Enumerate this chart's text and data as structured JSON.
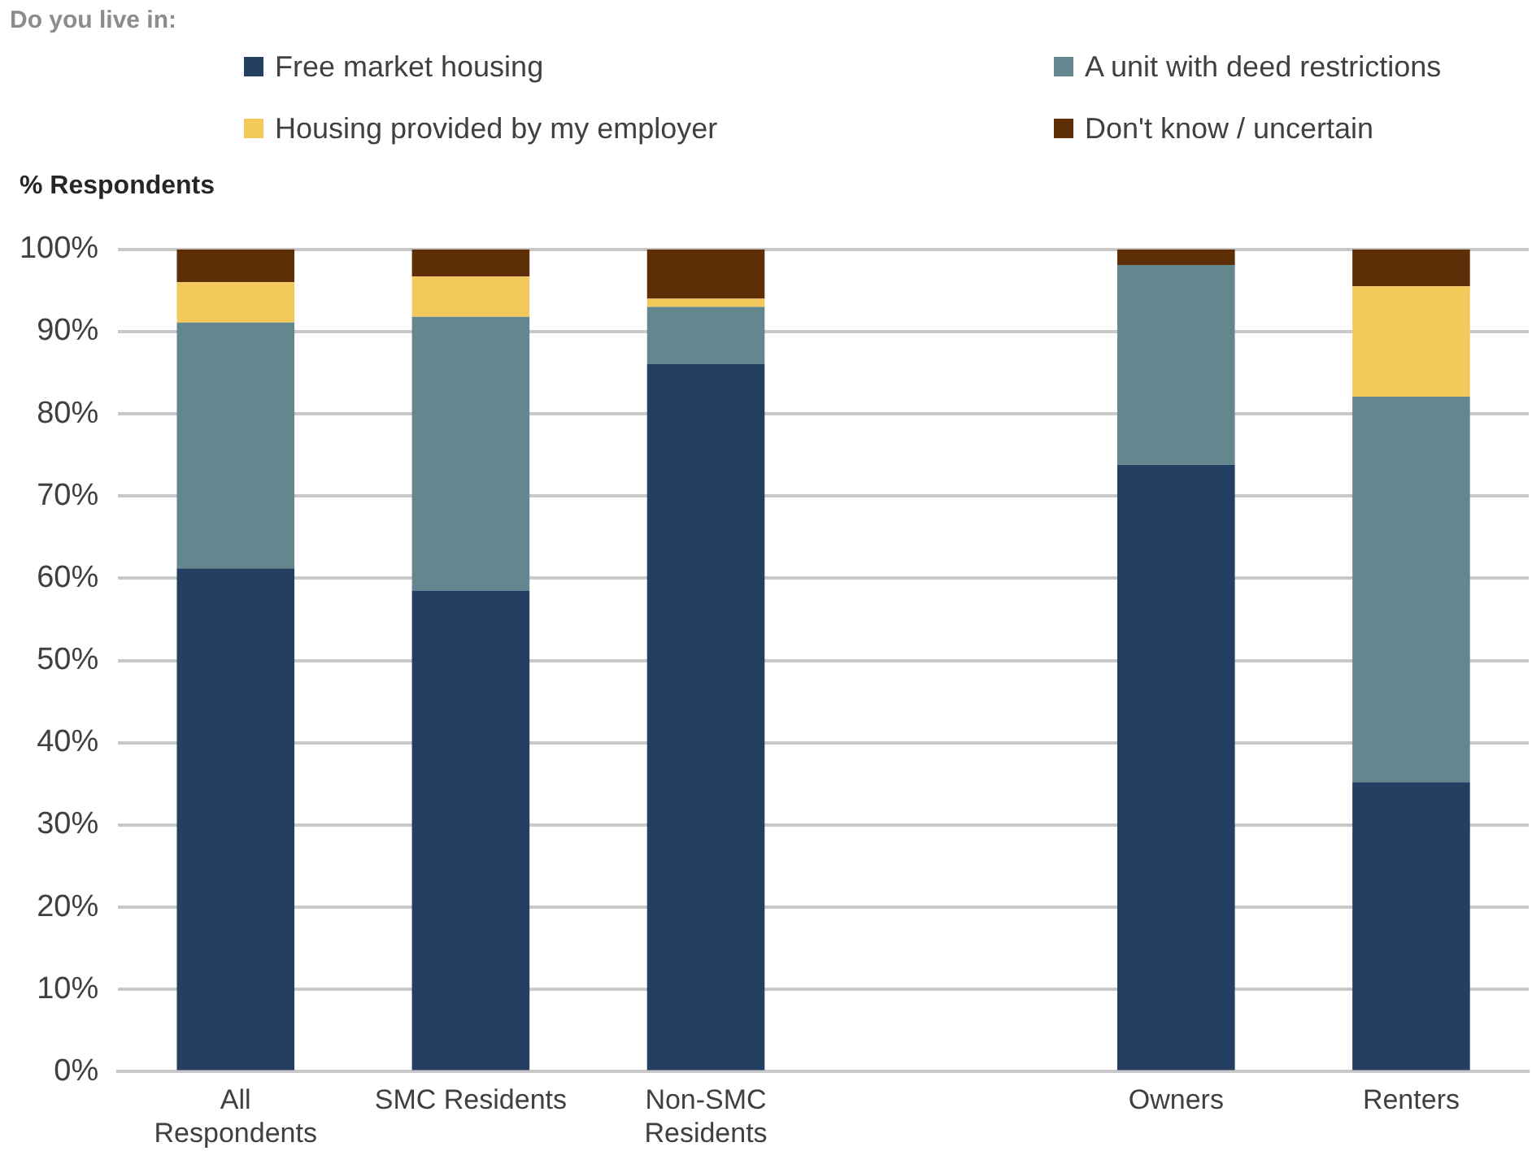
{
  "chart_data": {
    "type": "bar",
    "title": "Do you live in:",
    "ylabel": "% Respondents",
    "stacked": true,
    "legend": "top",
    "grid": "y",
    "categories": [
      "All Respondents",
      "SMC Residents",
      "Non-SMC Residents",
      null,
      "Owners",
      "Renters"
    ],
    "series": [
      {
        "name": "Free market housing",
        "color": "#243f62",
        "values": [
          61.2,
          58.5,
          86.1,
          null,
          73.8,
          35.2
        ]
      },
      {
        "name": "A unit with deed restrictions",
        "color": "#64878f",
        "values": [
          29.9,
          33.3,
          6.9,
          null,
          24.3,
          46.9
        ]
      },
      {
        "name": "Housing provided by my employer",
        "color": "#f3c95c",
        "values": [
          4.9,
          4.9,
          1.0,
          null,
          0,
          13.4
        ]
      },
      {
        "name": "Don't know / uncertain",
        "color": "#5e2e07",
        "values": [
          4.0,
          3.3,
          6.0,
          null,
          1.9,
          4.5
        ]
      }
    ],
    "ylim": [
      0,
      100
    ],
    "yticks": [
      {
        "value": 0,
        "label": "0%"
      },
      {
        "value": 10,
        "label": "10%"
      },
      {
        "value": 20,
        "label": "20%"
      },
      {
        "value": 30,
        "label": "30%"
      },
      {
        "value": 40,
        "label": "40%"
      },
      {
        "value": 50,
        "label": "50%"
      },
      {
        "value": 60,
        "label": "60%"
      },
      {
        "value": 70,
        "label": "70%"
      },
      {
        "value": 80,
        "label": "80%"
      },
      {
        "value": 90,
        "label": "90%"
      },
      {
        "value": 100,
        "label": "100%"
      }
    ]
  }
}
